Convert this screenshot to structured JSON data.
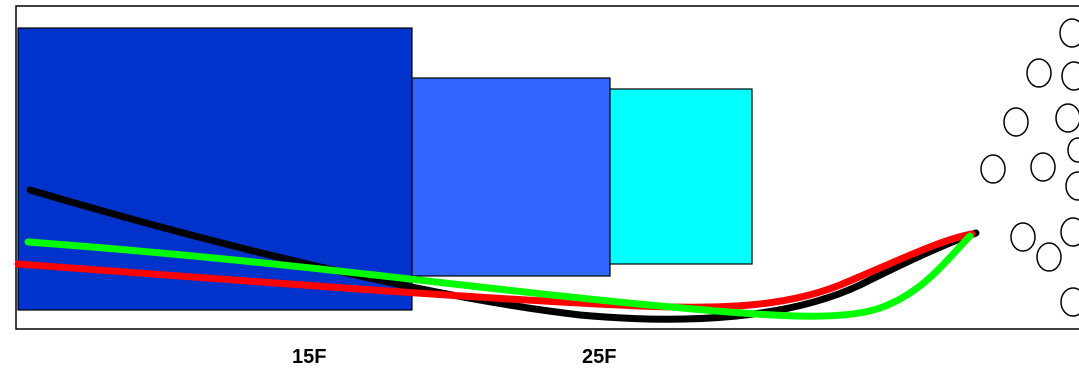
{
  "labels": {
    "left": "15F",
    "right": "25F"
  },
  "colors": {
    "background": "#ffffff",
    "frame_stroke": "#000000",
    "block_dark_blue": "#0033cc",
    "block_medium_blue": "#3366ff",
    "block_cyan": "#00ffff",
    "curve_black": "#000000",
    "curve_green": "#00ff00",
    "curve_red": "#ff0000",
    "hole_fill": "#ffffff",
    "hole_stroke": "#000000"
  },
  "curves": [
    {
      "id": "black",
      "color": "#000000"
    },
    {
      "id": "green",
      "color": "#00ff00"
    },
    {
      "id": "red",
      "color": "#ff0000"
    }
  ],
  "holes": {
    "count": 13
  }
}
